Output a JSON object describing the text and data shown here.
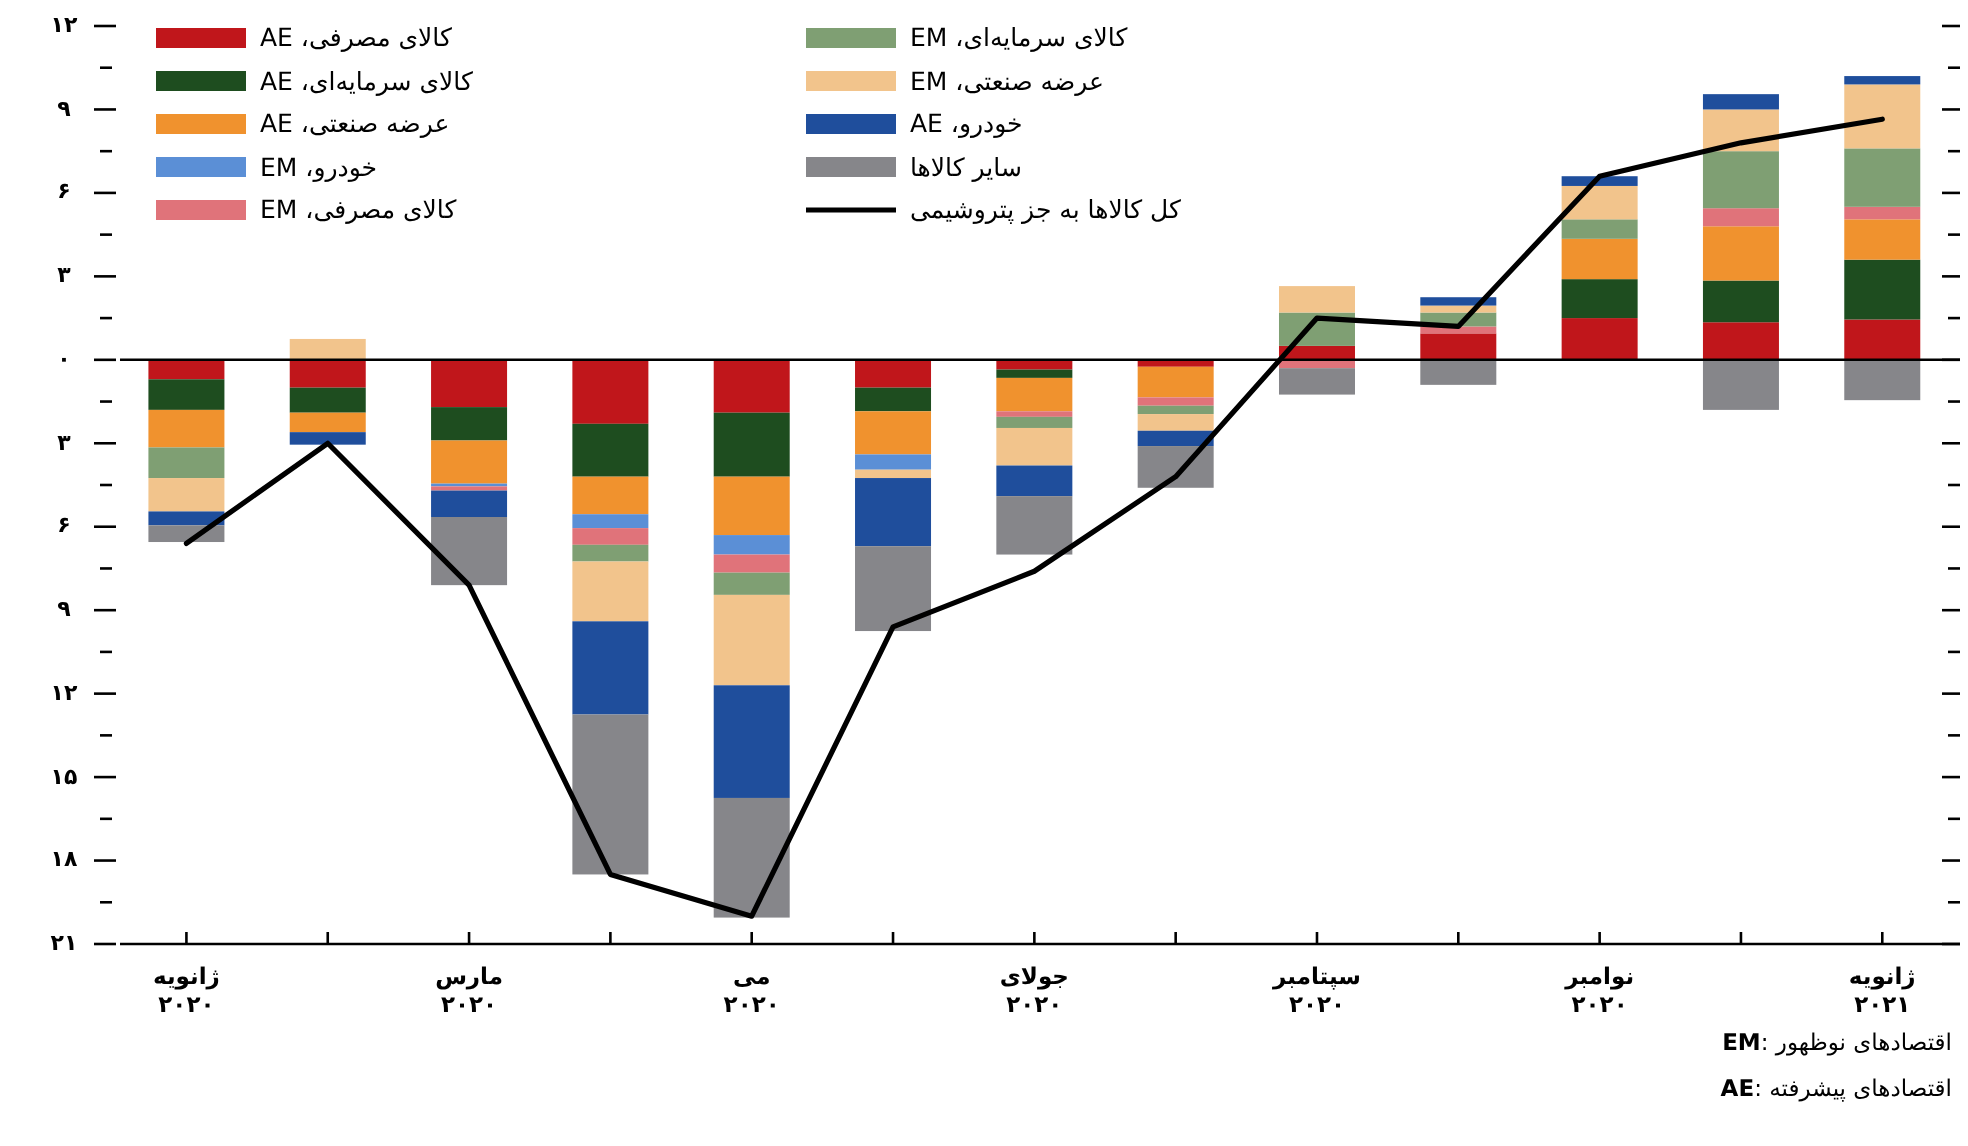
{
  "chart_data": {
    "type": "bar",
    "stacked": true,
    "legend": "top left",
    "categories": [
      "ژانویه ۲۰۲۰",
      null,
      "مارس ۲۰۲۰",
      null,
      "می ۲۰۲۰",
      null,
      "جولای ۲۰۲۰",
      null,
      "سپتامبر ۲۰۲۰",
      null,
      "نوامبر ۲۰۲۰",
      null,
      "ژانویه ۲۰۲۱"
    ],
    "series": [
      {
        "name": "کالای مصرفی، AE",
        "color": "#c0161b",
        "values": [
          -0.7,
          -1.0,
          -1.7,
          -2.3,
          -1.9,
          -1.0,
          -0.35,
          -0.25,
          0.5,
          0.95,
          1.5,
          1.35,
          1.45
        ]
      },
      {
        "name": "کالای سرمایه‌ای، AE",
        "color": "#1e4d1f",
        "values": [
          -1.1,
          -0.9,
          -1.2,
          -1.9,
          -2.3,
          -0.85,
          -0.3,
          null,
          null,
          null,
          1.4,
          1.5,
          2.15
        ]
      },
      {
        "name": "عرضه صنعتی، AE",
        "color": "#f0922e",
        "values": [
          -1.35,
          -0.7,
          -1.55,
          -1.35,
          -2.1,
          -1.55,
          -1.2,
          -1.1,
          null,
          null,
          1.45,
          1.95,
          1.45
        ]
      },
      {
        "name": "خودرو، EM",
        "color": "#5b8fd6",
        "values": [
          null,
          null,
          -0.1,
          -0.5,
          -0.7,
          -0.55,
          null,
          null,
          null,
          null,
          null,
          null,
          null
        ]
      },
      {
        "name": "کالای مصرفی، EM",
        "color": "#e0737a",
        "values": [
          null,
          null,
          -0.15,
          -0.6,
          -0.65,
          null,
          -0.2,
          -0.3,
          -0.3,
          0.25,
          null,
          0.65,
          0.45
        ]
      },
      {
        "name": "کالای سرمایه‌ای، EM",
        "color": "#7f9f73",
        "values": [
          -1.1,
          null,
          null,
          -0.6,
          -0.8,
          null,
          -0.4,
          -0.3,
          1.2,
          0.5,
          0.7,
          2.05,
          2.1
        ]
      },
      {
        "name": "عرضه صنعتی، EM",
        "color": "#f2c48c",
        "values": [
          -1.2,
          0.75,
          null,
          -2.15,
          -3.25,
          -0.3,
          -1.35,
          -0.6,
          0.95,
          0.25,
          1.2,
          1.5,
          2.3
        ]
      },
      {
        "name": "خودرو، AE",
        "color": "#1f4e9c",
        "values": [
          -0.5,
          -0.45,
          -0.95,
          -3.35,
          -4.05,
          -2.45,
          -1.1,
          -0.55,
          null,
          0.3,
          0.35,
          0.55,
          0.3
        ]
      },
      {
        "name": "سایر کالاها",
        "color": "#86868a",
        "values": [
          -0.6,
          null,
          -2.45,
          -5.75,
          -4.3,
          -3.05,
          -2.1,
          -1.5,
          -0.95,
          -0.9,
          null,
          -1.8,
          -1.45
        ]
      },
      {
        "name": "کل کالاها به جز پتروشیمی",
        "color": "#000000",
        "type": "line",
        "values": [
          -6.6,
          -3.0,
          -8.1,
          -18.5,
          -20.0,
          -9.6,
          -7.6,
          -4.2,
          1.5,
          1.2,
          6.6,
          7.8,
          8.65
        ]
      }
    ],
    "ylim": [
      -21,
      12
    ],
    "yticks": [
      {
        "value": 12,
        "label": "۱۲"
      },
      {
        "value": 9,
        "label": "۹"
      },
      {
        "value": 6,
        "label": "۶"
      },
      {
        "value": 3,
        "label": "۳"
      },
      {
        "value": 0,
        "label": "۰"
      },
      {
        "value": -3,
        "label": "۳"
      },
      {
        "value": -6,
        "label": "۶"
      },
      {
        "value": -9,
        "label": "۹"
      },
      {
        "value": -12,
        "label": "۱۲"
      },
      {
        "value": -15,
        "label": "۱۵"
      },
      {
        "value": -18,
        "label": "۱۸"
      },
      {
        "value": -21,
        "label": "۲۱"
      }
    ],
    "ref_lines": [
      {
        "axis": "y",
        "value": 0,
        "color": "#000000"
      }
    ],
    "annotations": [
      "**EM**: اقتصادهای نوظهور",
      "**AE**: اقتصادهای پیشرفته"
    ]
  }
}
